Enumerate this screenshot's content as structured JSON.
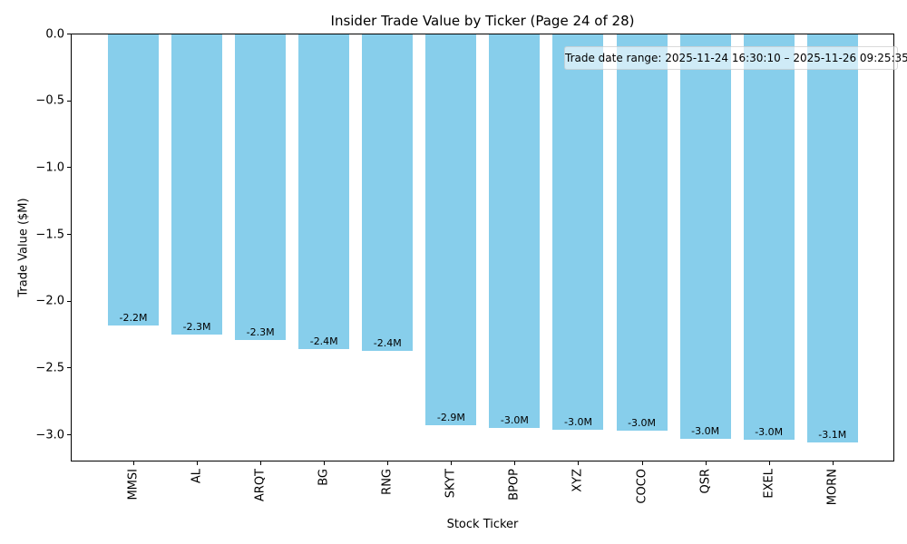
{
  "chart_data": {
    "type": "bar",
    "title": "Insider Trade Value by Ticker (Page 24 of 28)",
    "xlabel": "Stock Ticker",
    "ylabel": "Trade Value ($M)",
    "categories": [
      "MMSI",
      "AL",
      "ARQT",
      "BG",
      "RNG",
      "SKYT",
      "BPOP",
      "XYZ",
      "COCO",
      "QSR",
      "EXEL",
      "MORN"
    ],
    "values": [
      -2.18,
      -2.25,
      -2.29,
      -2.36,
      -2.37,
      -2.93,
      -2.95,
      -2.96,
      -2.97,
      -3.03,
      -3.04,
      -3.06
    ],
    "bar_labels": [
      "-2.2M",
      "-2.3M",
      "-2.3M",
      "-2.4M",
      "-2.4M",
      "-2.9M",
      "-3.0M",
      "-3.0M",
      "-3.0M",
      "-3.0M",
      "-3.0M",
      "-3.1M"
    ],
    "y_ticks": [
      {
        "label": "0.0",
        "value": 0
      },
      {
        "label": "−0.5",
        "value": -0.5
      },
      {
        "label": "−1.0",
        "value": -1.0
      },
      {
        "label": "−1.5",
        "value": -1.5
      },
      {
        "label": "−2.0",
        "value": -2.0
      },
      {
        "label": "−2.5",
        "value": -2.5
      },
      {
        "label": "−3.0",
        "value": -3.0
      }
    ],
    "ylim": [
      -3.2,
      0
    ],
    "annotation": "Trade date range: 2025-11-24 16:30:10 – 2025-11-26 09:25:35",
    "bar_color": "#87CEEB",
    "background_color": "#FFFFFF",
    "grid": false,
    "legend": null
  }
}
